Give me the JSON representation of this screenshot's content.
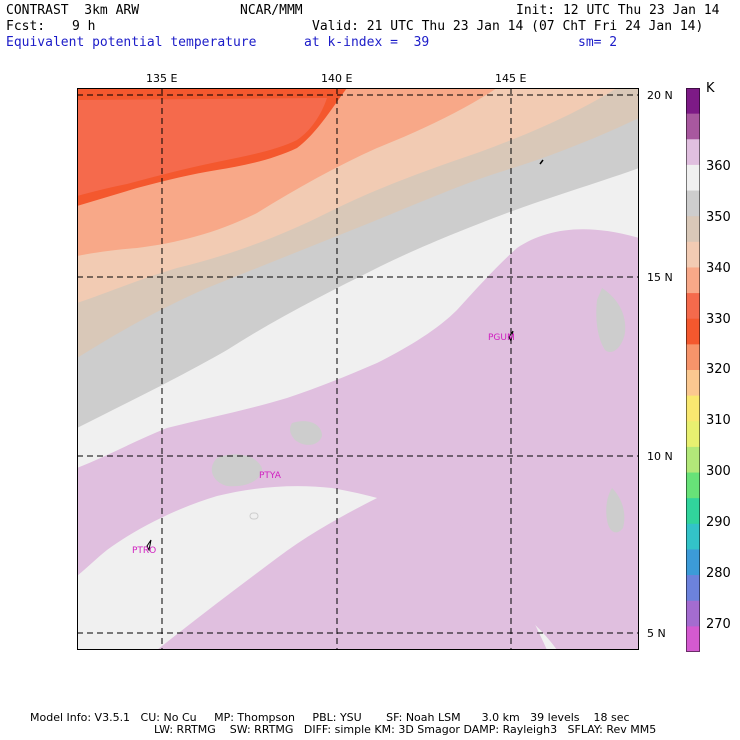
{
  "header": {
    "model": "CONTRAST  3km ARW",
    "center": "NCAR/MMM",
    "init": "Init: 12 UTC Thu 23 Jan 14",
    "fcst_label": "Fcst:",
    "fcst_value": "9 h",
    "valid": "Valid: 21 UTC Thu 23 Jan 14 (07 ChT Fri 24 Jan 14)",
    "field": "Equivalent potential temperature",
    "level": "at k-index =  39",
    "smooth": "sm= 2"
  },
  "map": {
    "lon_labels": [
      "135 E",
      "140 E",
      "145 E"
    ],
    "lat_labels": [
      "20 N",
      "15 N",
      "10 N",
      "5 N"
    ],
    "stations": [
      "PGUM",
      "PTYA",
      "PTRO"
    ]
  },
  "legend": {
    "unit": "K",
    "labels": [
      "360",
      "350",
      "340",
      "330",
      "320",
      "310",
      "300",
      "290",
      "280",
      "270"
    ],
    "colors": [
      "#7d1a86",
      "#a8589f",
      "#e0bfdf",
      "#f0f0f0",
      "#cdcdcd",
      "#d9c8b8",
      "#f2cbb3",
      "#f8a888",
      "#f56a4c",
      "#f4582e",
      "#f7946a",
      "#fbc890",
      "#f9e870",
      "#e8f070",
      "#b2e879",
      "#67e278",
      "#31d49c",
      "#33c3c8",
      "#3c9bd8",
      "#6c82dc",
      "#a46cd0",
      "#d45ad0"
    ]
  },
  "footer": {
    "line1": "Model Info: V3.5.1   CU: No Cu     MP: Thompson     PBL: YSU       SF: Noah LSM      3.0 km   39 levels    18 sec",
    "line2": "LW: RRTMG    SW: RRTMG   DIFF: simple KM: 3D Smagor DAMP: Rayleigh3   SFLAY: Rev MM5"
  }
}
